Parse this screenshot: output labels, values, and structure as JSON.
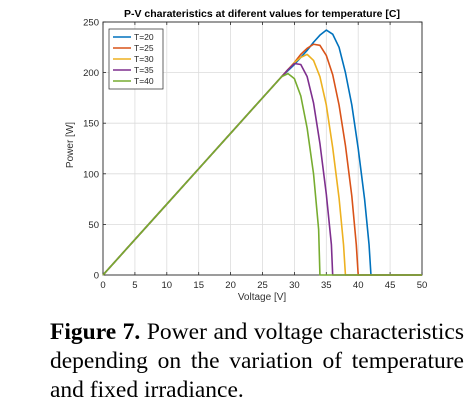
{
  "chart_data": {
    "type": "line",
    "title": "P-V charateristics at diferent values for temperature [C]",
    "xlabel": "Voltage [V]",
    "ylabel": "Power [W]",
    "xlim": [
      0,
      50
    ],
    "ylim": [
      0,
      250
    ],
    "xticks": [
      0,
      5,
      10,
      15,
      20,
      25,
      30,
      35,
      40,
      45,
      50
    ],
    "yticks": [
      0,
      50,
      100,
      150,
      200,
      250
    ],
    "grid": true,
    "legend_position": "top-left",
    "series": [
      {
        "name": "T=20",
        "color": "#0072BD",
        "points": [
          [
            0,
            0
          ],
          [
            5,
            35
          ],
          [
            10,
            70
          ],
          [
            15,
            105
          ],
          [
            20,
            140
          ],
          [
            25,
            175
          ],
          [
            28,
            196
          ],
          [
            30,
            208
          ],
          [
            32,
            222
          ],
          [
            33,
            230
          ],
          [
            34,
            237
          ],
          [
            35,
            242
          ],
          [
            36,
            238
          ],
          [
            37,
            225
          ],
          [
            38,
            200
          ],
          [
            39,
            168
          ],
          [
            40,
            125
          ],
          [
            41,
            75
          ],
          [
            41.7,
            30
          ],
          [
            42,
            0
          ],
          [
            50,
            0
          ]
        ]
      },
      {
        "name": "T=25",
        "color": "#D95319",
        "points": [
          [
            0,
            0
          ],
          [
            5,
            35
          ],
          [
            10,
            70
          ],
          [
            15,
            105
          ],
          [
            20,
            140
          ],
          [
            25,
            175
          ],
          [
            28,
            196
          ],
          [
            30,
            210
          ],
          [
            31,
            218
          ],
          [
            32,
            224
          ],
          [
            33,
            228
          ],
          [
            34,
            227
          ],
          [
            35,
            217
          ],
          [
            36,
            198
          ],
          [
            37,
            168
          ],
          [
            38,
            128
          ],
          [
            39,
            78
          ],
          [
            39.7,
            30
          ],
          [
            40,
            0
          ],
          [
            50,
            0
          ]
        ]
      },
      {
        "name": "T=30",
        "color": "#EDB120",
        "points": [
          [
            0,
            0
          ],
          [
            5,
            35
          ],
          [
            10,
            70
          ],
          [
            15,
            105
          ],
          [
            20,
            140
          ],
          [
            25,
            175
          ],
          [
            28,
            196
          ],
          [
            29,
            203
          ],
          [
            30,
            210
          ],
          [
            31,
            215
          ],
          [
            32,
            218
          ],
          [
            33,
            212
          ],
          [
            34,
            196
          ],
          [
            35,
            168
          ],
          [
            36,
            126
          ],
          [
            37,
            76
          ],
          [
            37.7,
            30
          ],
          [
            38,
            0
          ],
          [
            50,
            0
          ]
        ]
      },
      {
        "name": "T=35",
        "color": "#7E2F8E",
        "points": [
          [
            0,
            0
          ],
          [
            5,
            35
          ],
          [
            10,
            70
          ],
          [
            15,
            105
          ],
          [
            20,
            140
          ],
          [
            25,
            175
          ],
          [
            27,
            189
          ],
          [
            28,
            196
          ],
          [
            29,
            203
          ],
          [
            30,
            209
          ],
          [
            31,
            208
          ],
          [
            32,
            196
          ],
          [
            33,
            170
          ],
          [
            34,
            130
          ],
          [
            35,
            80
          ],
          [
            35.8,
            30
          ],
          [
            36,
            0
          ],
          [
            50,
            0
          ]
        ]
      },
      {
        "name": "T=40",
        "color": "#77AC30",
        "points": [
          [
            0,
            0
          ],
          [
            5,
            35
          ],
          [
            10,
            70
          ],
          [
            15,
            105
          ],
          [
            20,
            140
          ],
          [
            25,
            175
          ],
          [
            27,
            189
          ],
          [
            28,
            196
          ],
          [
            29,
            199
          ],
          [
            30,
            194
          ],
          [
            31,
            177
          ],
          [
            32,
            145
          ],
          [
            33,
            100
          ],
          [
            33.8,
            45
          ],
          [
            34,
            0
          ],
          [
            50,
            0
          ]
        ]
      }
    ]
  },
  "caption": {
    "label": "Figure 7.",
    "text": "Power and voltage characteristics depending on the variation of temperature and fixed irradiance."
  }
}
